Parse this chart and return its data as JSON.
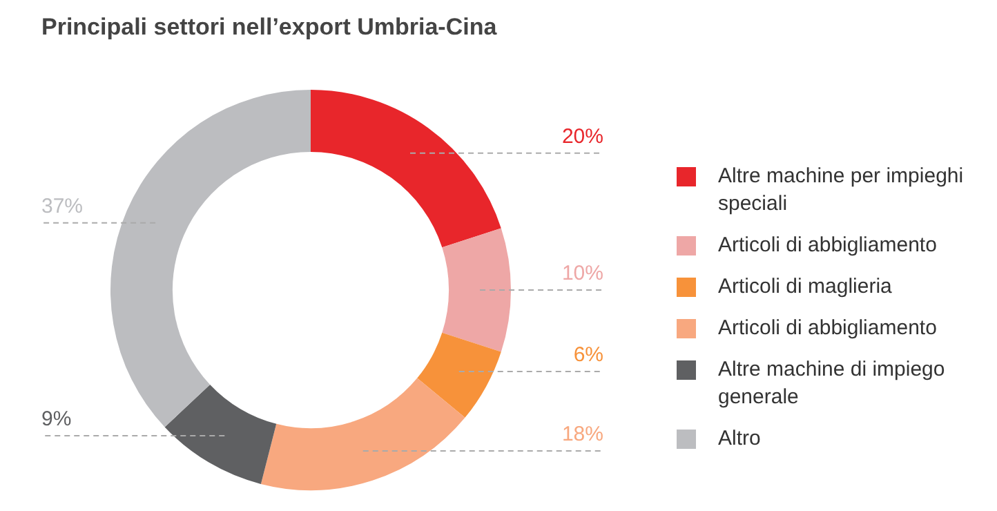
{
  "chart_data": {
    "type": "donut",
    "title": "Principali settori nell’export Umbria-Cina",
    "categories": [
      "Altre machine per impieghi speciali",
      "Articoli di abbigliamento",
      "Articoli di maglieria",
      "Articoli di abbigliamento",
      "Altre machine di impiego generale",
      "Altro"
    ],
    "values": [
      20,
      10,
      6,
      18,
      9,
      37
    ],
    "colors": [
      "#e8262b",
      "#eea7a6",
      "#f7923a",
      "#f8a87f",
      "#5f6062",
      "#bcbdc0"
    ],
    "value_labels": [
      "20%",
      "10%",
      "6%",
      "18%",
      "9%",
      "37%"
    ],
    "legend": "right"
  }
}
